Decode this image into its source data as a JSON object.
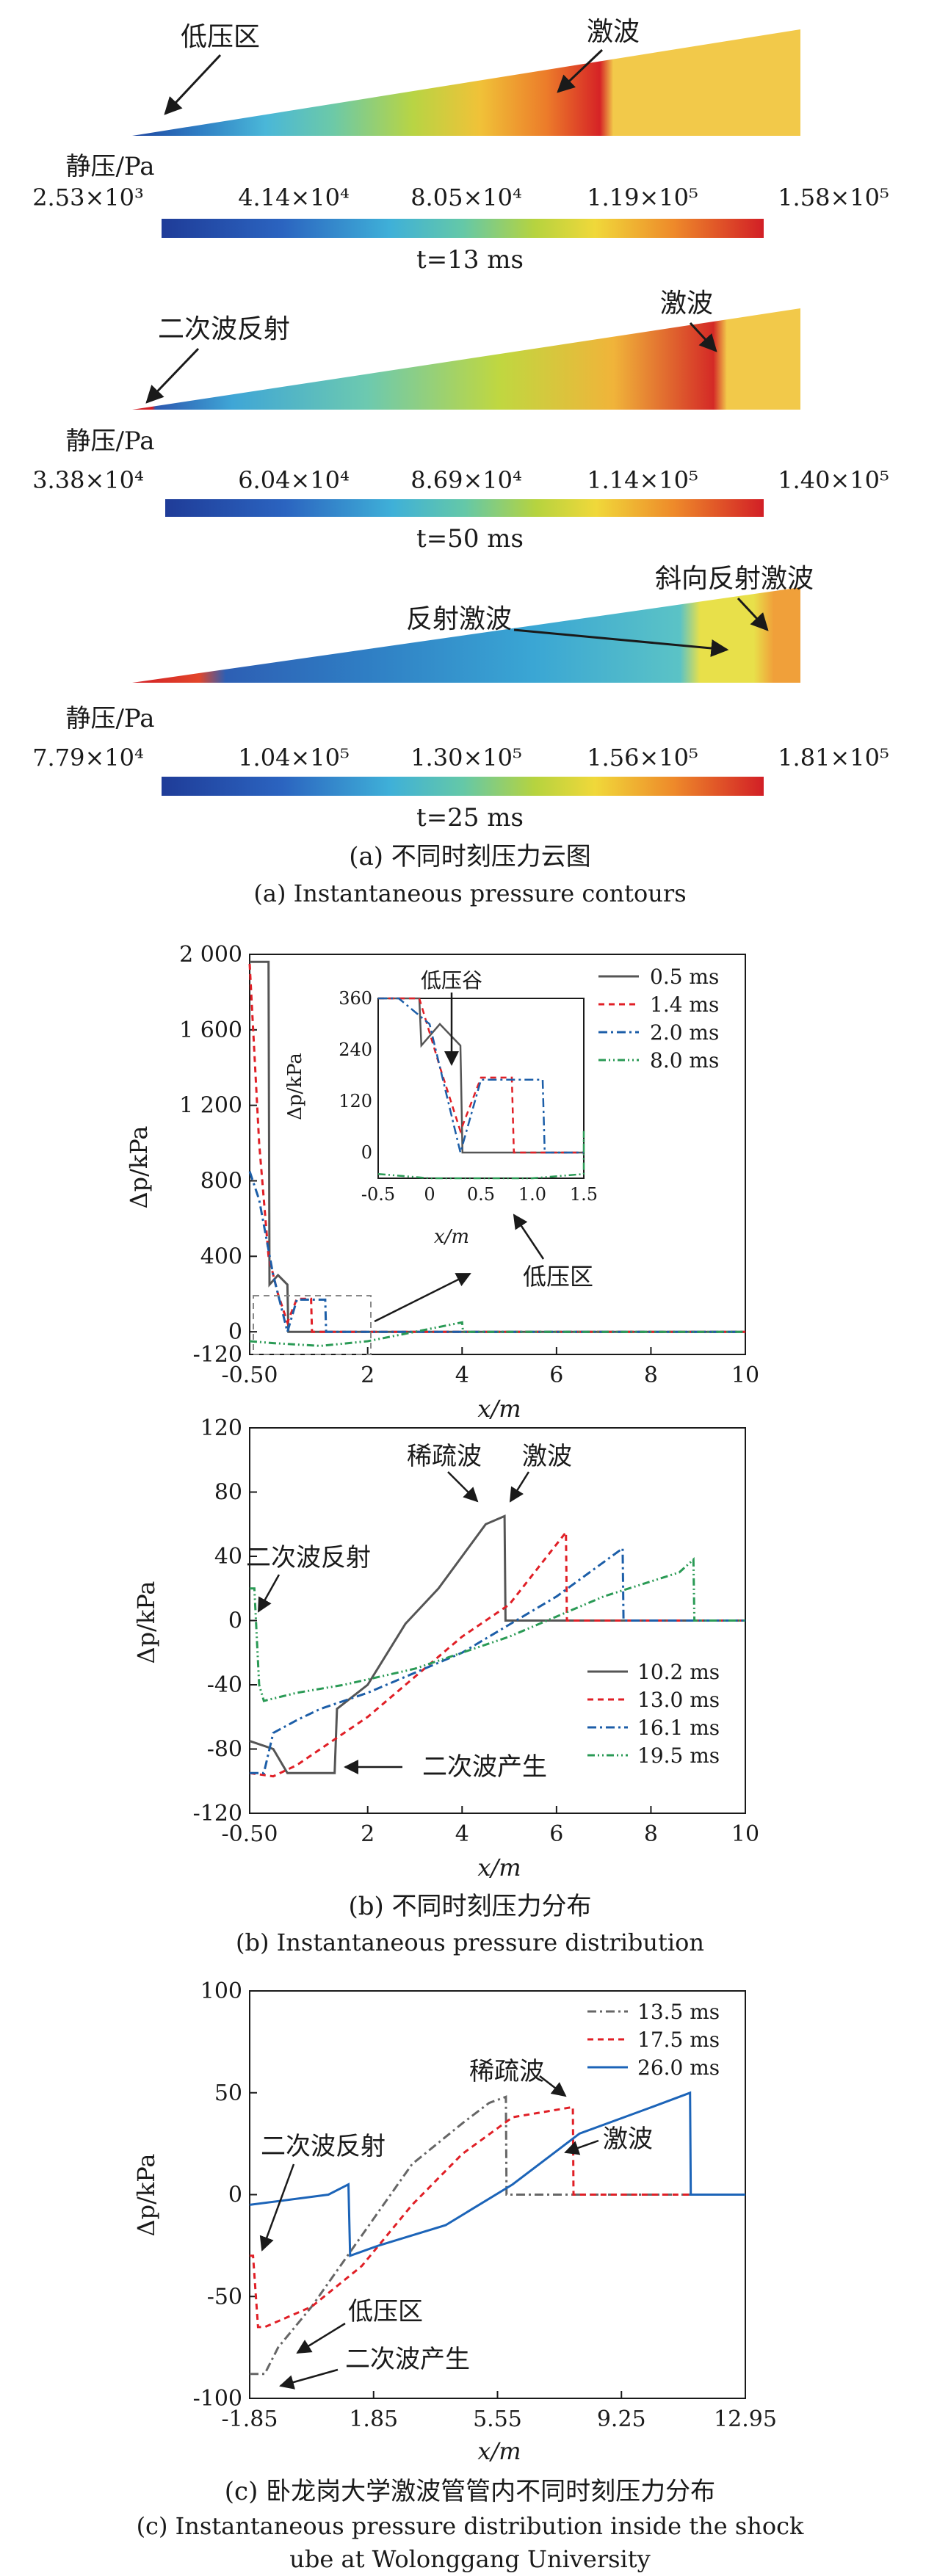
{
  "chart_data": [
    {
      "type": "heatmap",
      "panel": "a1",
      "colorbar_title": "静压/Pa",
      "colorbar_ticks": [
        "2.53×10³",
        "4.14×10⁴",
        "8.05×10⁴",
        "1.19×10⁵",
        "1.58×10⁵"
      ],
      "time_label": "t=13 ms",
      "annotations": [
        "低压区",
        "激波"
      ]
    },
    {
      "type": "heatmap",
      "panel": "a2",
      "colorbar_title": "静压/Pa",
      "colorbar_ticks": [
        "3.38×10⁴",
        "6.04×10⁴",
        "8.69×10⁴",
        "1.14×10⁵",
        "1.40×10⁵"
      ],
      "time_label": "t=50 ms",
      "annotations": [
        "二次波反射",
        "激波"
      ]
    },
    {
      "type": "heatmap",
      "panel": "a3",
      "colorbar_title": "静压/Pa",
      "colorbar_ticks": [
        "7.79×10⁴",
        "1.04×10⁵",
        "1.30×10⁵",
        "1.56×10⁵",
        "1.81×10⁵"
      ],
      "time_label": "t=25 ms",
      "annotations": [
        "斜向反射激波",
        "反射激波"
      ]
    },
    {
      "type": "line",
      "panel": "b1",
      "xlabel": "x/m",
      "ylabel": "Δp/kPa",
      "xlim": [
        -0.5,
        10
      ],
      "ylim": [
        -120,
        2000
      ],
      "xticks": [
        "-0.50",
        "2",
        "4",
        "6",
        "8",
        "10"
      ],
      "yticks": [
        "-120",
        "0",
        "400",
        "800",
        "1 200",
        "1 600",
        "2 000"
      ],
      "ytick_values": [
        -120,
        0,
        400,
        800,
        1200,
        1600,
        2000
      ],
      "xtick_values": [
        -0.5,
        2,
        4,
        6,
        8,
        10
      ],
      "series": [
        {
          "name": "0.5 ms",
          "x": [
            -0.5,
            -0.1,
            -0.08,
            0.1,
            0.3,
            0.32,
            0.4,
            10
          ],
          "y": [
            1960,
            1960,
            250,
            300,
            250,
            0,
            0,
            0
          ]
        },
        {
          "name": "1.4 ms",
          "x": [
            -0.5,
            -0.3,
            -0.1,
            0.1,
            0.3,
            0.5,
            0.8,
            0.82,
            10
          ],
          "y": [
            1950,
            1000,
            400,
            200,
            50,
            175,
            175,
            0,
            0
          ]
        },
        {
          "name": "2.0 ms",
          "x": [
            -0.5,
            -0.3,
            0.0,
            0.2,
            0.3,
            0.5,
            1.1,
            1.12,
            10
          ],
          "y": [
            850,
            700,
            300,
            100,
            0,
            170,
            170,
            0,
            0
          ]
        },
        {
          "name": "8.0 ms",
          "x": [
            -0.5,
            0.0,
            1.0,
            2.0,
            3.0,
            4.0,
            4.02,
            10
          ],
          "y": [
            -50,
            -60,
            -75,
            -50,
            0,
            50,
            0,
            0
          ]
        }
      ],
      "inset": {
        "xlabel": "x/m",
        "ylabel": "Δp/kPa",
        "xlim": [
          -0.5,
          1.5
        ],
        "ylim": [
          -60,
          360
        ],
        "xticks": [
          "-0.5",
          "0",
          "0.5",
          "1.0",
          "1.5"
        ],
        "yticks": [
          "0",
          "120",
          "240",
          "360"
        ],
        "annotation": "低压谷"
      },
      "annotations": [
        "低压区"
      ]
    },
    {
      "type": "line",
      "panel": "b2",
      "xlabel": "x/m",
      "ylabel": "Δp/kPa",
      "xlim": [
        -0.5,
        10
      ],
      "ylim": [
        -120,
        120
      ],
      "xticks": [
        "-0.50",
        "2",
        "4",
        "6",
        "8",
        "10"
      ],
      "yticks": [
        "-120",
        "-80",
        "-40",
        "0",
        "40",
        "80",
        "120"
      ],
      "ytick_values": [
        -120,
        -80,
        -40,
        0,
        40,
        80,
        120
      ],
      "xtick_values": [
        -0.5,
        2,
        4,
        6,
        8,
        10
      ],
      "series": [
        {
          "name": "10.2 ms",
          "x": [
            -0.5,
            0.0,
            0.3,
            0.8,
            1.3,
            1.35,
            2.0,
            2.8,
            3.5,
            4.0,
            4.5,
            4.9,
            4.92,
            10
          ],
          "y": [
            -75,
            -80,
            -95,
            -95,
            -95,
            -55,
            -40,
            -2,
            20,
            40,
            60,
            65,
            0,
            0
          ]
        },
        {
          "name": "13.0 ms",
          "x": [
            -0.5,
            0.0,
            0.5,
            1.0,
            2.0,
            3.0,
            4.0,
            5.0,
            5.8,
            6.2,
            6.22,
            10
          ],
          "y": [
            -95,
            -97,
            -90,
            -80,
            -60,
            -35,
            -10,
            10,
            40,
            55,
            0,
            0
          ]
        },
        {
          "name": "16.1 ms",
          "x": [
            -0.5,
            -0.2,
            0.0,
            0.5,
            1.0,
            2.0,
            4.0,
            6.0,
            7.4,
            7.42,
            10
          ],
          "y": [
            -95,
            -95,
            -70,
            -62,
            -55,
            -45,
            -20,
            15,
            45,
            0,
            0
          ]
        },
        {
          "name": "19.5 ms",
          "x": [
            -0.5,
            -0.4,
            -0.3,
            -0.2,
            0.5,
            1.5,
            3.0,
            5.0,
            7.0,
            8.6,
            8.9,
            8.92,
            10
          ],
          "y": [
            20,
            20,
            -40,
            -50,
            -45,
            -40,
            -30,
            -10,
            15,
            30,
            38,
            0,
            0
          ]
        }
      ],
      "annotations": [
        "稀疏波",
        "激波",
        "二次波反射",
        "二次波产生"
      ]
    },
    {
      "type": "line",
      "panel": "c",
      "xlabel": "x/m",
      "ylabel": "Δp/kPa",
      "xlim": [
        -1.85,
        12.95
      ],
      "ylim": [
        -100,
        100
      ],
      "xticks": [
        "-1.85",
        "1.85",
        "5.55",
        "9.25",
        "12.95"
      ],
      "yticks": [
        "-100",
        "-50",
        "0",
        "50",
        "100"
      ],
      "ytick_values": [
        -100,
        -50,
        0,
        50,
        100
      ],
      "xtick_values": [
        -1.85,
        1.85,
        5.55,
        9.25,
        12.95
      ],
      "series": [
        {
          "name": "13.5 ms",
          "x": [
            -1.85,
            -1.4,
            -1.0,
            0.0,
            1.5,
            3.0,
            4.5,
            5.3,
            5.8,
            5.82,
            12.95
          ],
          "y": [
            -88,
            -88,
            -75,
            -55,
            -20,
            15,
            35,
            45,
            48,
            0,
            0
          ]
        },
        {
          "name": "17.5 ms",
          "x": [
            -1.85,
            -1.75,
            -1.6,
            -1.4,
            0.0,
            1.5,
            3.0,
            4.5,
            6.0,
            7.8,
            7.82,
            12.95
          ],
          "y": [
            -30,
            -30,
            -65,
            -65,
            -55,
            -35,
            -5,
            20,
            38,
            43,
            0,
            0
          ]
        },
        {
          "name": "26.0 ms",
          "x": [
            -1.85,
            0.5,
            1.1,
            1.15,
            2.0,
            4.0,
            6.0,
            8.0,
            10.0,
            11.3,
            11.32,
            12.95
          ],
          "y": [
            -5,
            0,
            5,
            -30,
            -25,
            -15,
            5,
            30,
            42,
            50,
            0,
            0
          ]
        }
      ],
      "annotations": [
        "稀疏波",
        "二次波反射",
        "激波",
        "低压区",
        "二次波产生"
      ]
    }
  ],
  "captions": {
    "a_cn": "(a) 不同时刻压力云图",
    "a_en": "(a) Instantaneous pressure contours",
    "b_cn": "(b) 不同时刻压力分布",
    "b_en": "(b) Instantaneous pressure distribution",
    "c_cn": "(c) 卧龙岗大学激波管管内不同时刻压力分布",
    "c_en1": "(c) Instantaneous pressure distribution inside the shock",
    "c_en2": "ube at Wolonggang University"
  },
  "colors": {
    "s1": "#555555",
    "s2": "#e01f26",
    "s3": "#1c5ea8",
    "s4": "#2a9a55",
    "c26": "#1c64b8",
    "c135": "#666666"
  }
}
